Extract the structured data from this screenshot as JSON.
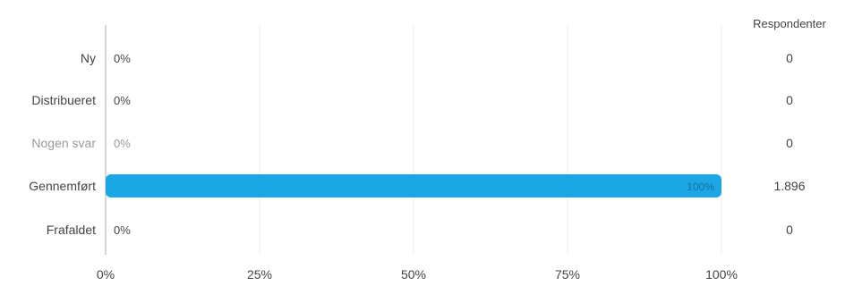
{
  "chart_data": {
    "type": "bar",
    "orientation": "horizontal",
    "title": "",
    "xlabel": "",
    "ylabel": "",
    "categories": [
      "Ny",
      "Distribueret",
      "Nogen svar",
      "Gennemført",
      "Frafaldet"
    ],
    "values": [
      0,
      0,
      0,
      100,
      0
    ],
    "value_labels": [
      "0%",
      "0%",
      "0%",
      "100%",
      "0%"
    ],
    "xlim": [
      0,
      100
    ],
    "x_ticks": [
      "0%",
      "25%",
      "50%",
      "75%",
      "100%"
    ],
    "grid": true,
    "right_column": {
      "header": "Respondenter",
      "values": [
        "0",
        "0",
        "0",
        "1.896",
        "0"
      ]
    },
    "colors": {
      "bar": "#1aa7e4",
      "bar_label": "#1670a6",
      "label": "#444444",
      "muted_label": "#999999",
      "grid": "#eeeeee",
      "axis": "#bbbbbb"
    },
    "muted_categories": [
      "Nogen svar"
    ]
  }
}
